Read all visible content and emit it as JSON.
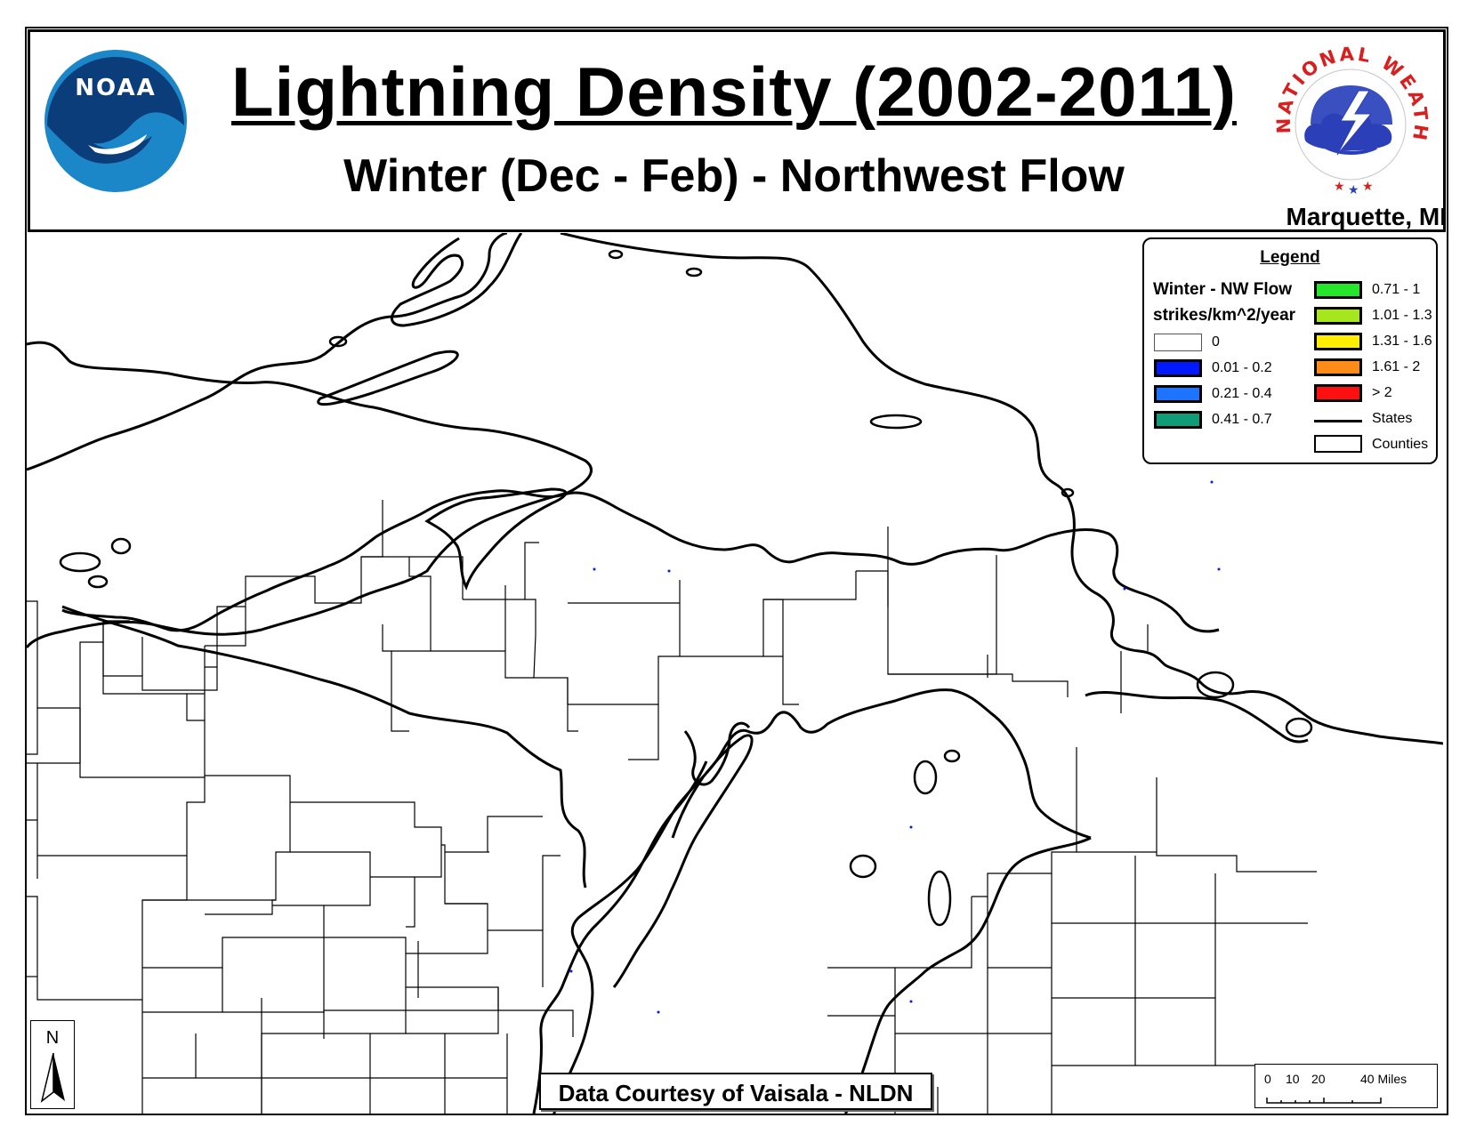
{
  "header": {
    "title": "Lightning Density (2002-2011)",
    "subtitle": "Winter (Dec - Feb) - Northwest Flow",
    "office": "Marquette, MI",
    "noaa_logo_text": "NOAA",
    "nws_logo_text": "NATIONAL WEATHER SERVICE"
  },
  "legend": {
    "title": "Legend",
    "label1": "Winter - NW Flow",
    "label2": "strikes/km^2/year",
    "classes": [
      {
        "label": "0",
        "color": "#ffffff"
      },
      {
        "label": "0.01 - 0.2",
        "color": "#0019ff"
      },
      {
        "label": "0.21 - 0.4",
        "color": "#1f74ff"
      },
      {
        "label": "0.41 - 0.7",
        "color": "#119c78"
      },
      {
        "label": "0.71 - 1",
        "color": "#25e62b"
      },
      {
        "label": "1.01 - 1.3",
        "color": "#a5e61e"
      },
      {
        "label": "1.31 - 1.6",
        "color": "#ffee00"
      },
      {
        "label": "1.61 - 2",
        "color": "#ff8c19"
      },
      {
        "label": "> 2",
        "color": "#ff1010"
      }
    ],
    "states_label": "States",
    "counties_label": "Counties"
  },
  "credit": "Data Courtesy of Vaisala - NLDN",
  "north_arrow": "N",
  "scale_bar": {
    "labels": [
      "0",
      "10",
      "20",
      "40 Miles"
    ]
  }
}
